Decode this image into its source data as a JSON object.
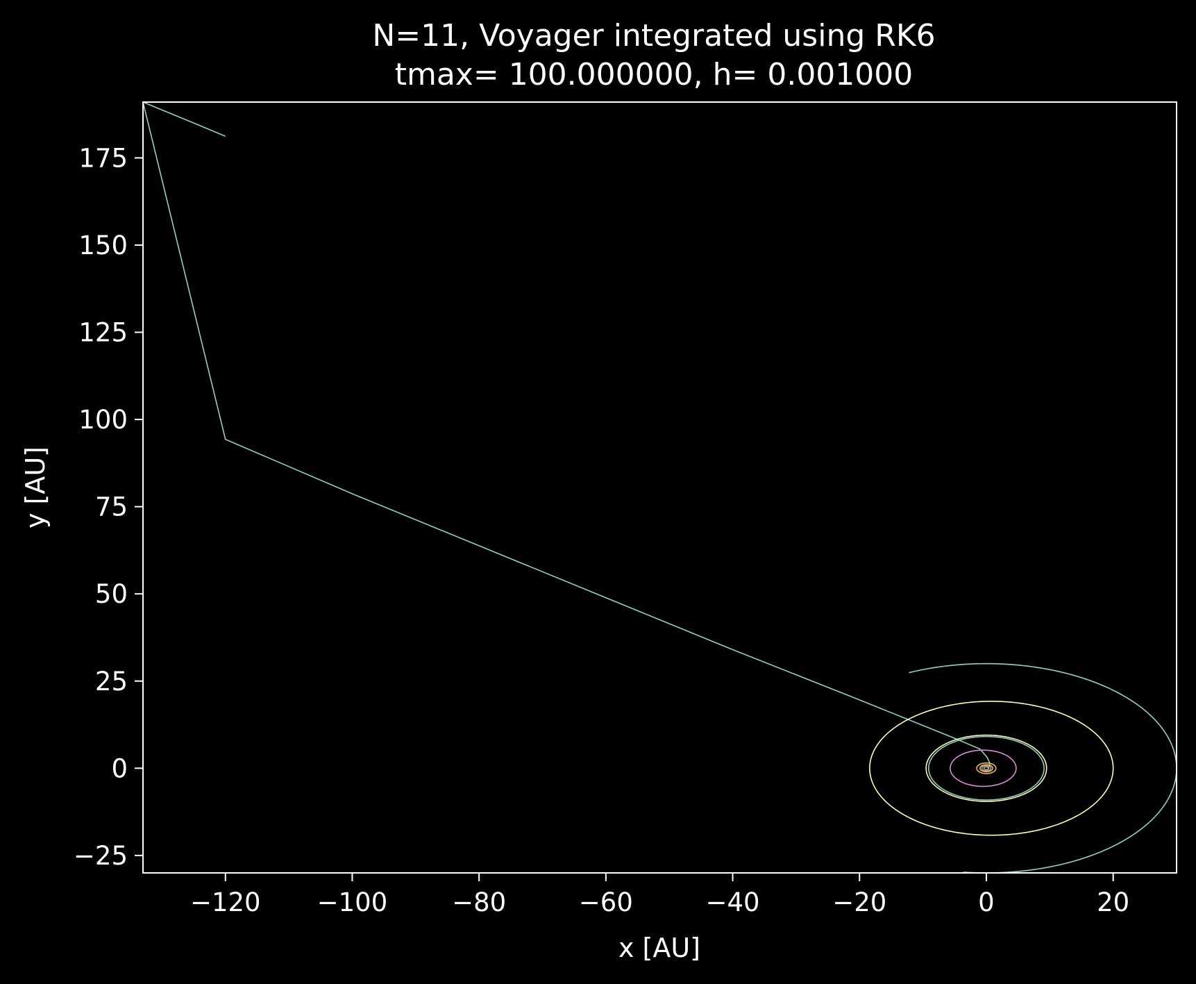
{
  "chart_data": {
    "type": "line",
    "title_line1": "N=11, Voyager integrated using RK6",
    "title_line2": "tmax= 100.000000, h= 0.001000",
    "xlabel": "x [AU]",
    "ylabel": "y [AU]",
    "xlim": [
      -133,
      30
    ],
    "ylim": [
      -30,
      191
    ],
    "xticks": [
      -120,
      -100,
      -80,
      -60,
      -40,
      -20,
      0,
      20
    ],
    "yticks": [
      -25,
      0,
      25,
      50,
      75,
      100,
      125,
      150,
      175
    ],
    "grid": false,
    "background": "#000000",
    "series": [
      {
        "kind": "trajectory",
        "color": "#8dd3c7",
        "x": [
          0.2,
          0.6,
          0.1,
          -1.0,
          -5.0,
          -20.0,
          -40.0,
          -60.0,
          -80.0,
          -100.0,
          -120.0,
          -133.0
        ],
        "y": [
          0.0,
          1.3,
          3.2,
          5.5,
          8.6,
          19.6,
          34.0,
          48.9,
          63.8,
          78.7,
          94.3,
          191.0
        ]
      },
      {
        "kind": "trajectory",
        "color": "#8dd3c7",
        "x": [
          -133.0,
          -125.0,
          -120.0
        ],
        "y": [
          191.0,
          185.0,
          181.2
        ]
      },
      {
        "kind": "orbit",
        "center": [
          0,
          0
        ],
        "radii": [
          30.0,
          30.0
        ],
        "color": "#8dd3c7",
        "theta_start_deg": 263,
        "theta_end_deg": 474
      },
      {
        "kind": "orbit",
        "center": [
          0.8,
          0
        ],
        "radii": [
          19.2,
          19.2
        ],
        "color": "#ffffb3",
        "theta_start_deg": 0,
        "theta_end_deg": 360
      },
      {
        "kind": "orbit",
        "center": [
          0,
          0
        ],
        "radii": [
          9.5,
          9.5
        ],
        "color": "#ffffb3",
        "theta_start_deg": 0,
        "theta_end_deg": 360
      },
      {
        "kind": "orbit",
        "center": [
          0,
          0
        ],
        "radii": [
          9.1,
          9.1
        ],
        "color": "#8dd3c7",
        "theta_start_deg": 0,
        "theta_end_deg": 360
      },
      {
        "kind": "orbit",
        "center": [
          -0.5,
          0
        ],
        "radii": [
          5.2,
          5.2
        ],
        "color": "#dd8be0",
        "theta_start_deg": 0,
        "theta_end_deg": 360
      },
      {
        "kind": "orbit",
        "center": [
          0,
          0
        ],
        "radii": [
          1.52,
          1.52
        ],
        "color": "#fdb462",
        "theta_start_deg": 0,
        "theta_end_deg": 360
      },
      {
        "kind": "orbit",
        "center": [
          0,
          0
        ],
        "radii": [
          1.0,
          1.0
        ],
        "color": "#b3de69",
        "theta_start_deg": 0,
        "theta_end_deg": 360
      },
      {
        "kind": "orbit",
        "center": [
          0,
          0
        ],
        "radii": [
          0.72,
          0.72
        ],
        "color": "#fb8072",
        "theta_start_deg": 0,
        "theta_end_deg": 360
      },
      {
        "kind": "orbit",
        "center": [
          0,
          0
        ],
        "radii": [
          0.39,
          0.39
        ],
        "color": "#80b1d3",
        "theta_start_deg": 0,
        "theta_end_deg": 360
      }
    ]
  }
}
